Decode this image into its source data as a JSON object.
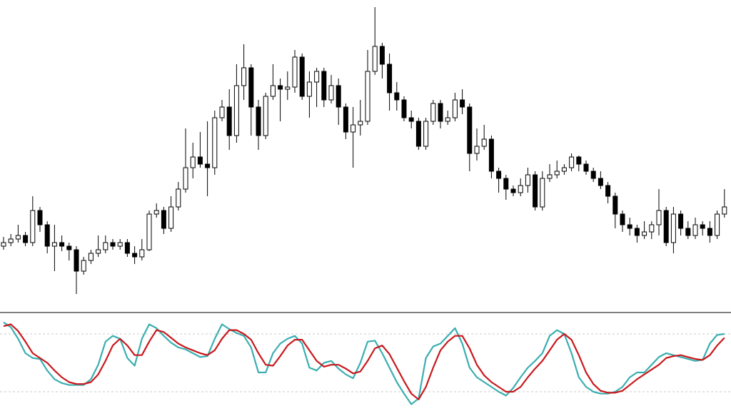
{
  "chart_data": [
    {
      "type": "candlestick",
      "ylim": [
        0,
        440
      ],
      "up_color": "#ffffff",
      "down_color": "#000000",
      "edge_color": "#000000",
      "open": [
        95,
        100,
        105,
        110,
        100,
        145,
        125,
        95,
        100,
        95,
        90,
        60,
        75,
        85,
        90,
        100,
        95,
        100,
        85,
        80,
        90,
        140,
        145,
        120,
        150,
        175,
        205,
        220,
        210,
        205,
        275,
        290,
        250,
        320,
        345,
        290,
        250,
        305,
        320,
        315,
        318,
        360,
        305,
        325,
        340,
        300,
        320,
        290,
        255,
        265,
        270,
        340,
        375,
        350,
        310,
        300,
        275,
        270,
        235,
        270,
        295,
        270,
        275,
        300,
        290,
        225,
        235,
        245,
        200,
        190,
        175,
        170,
        180,
        195,
        150,
        190,
        195,
        200,
        205,
        220,
        210,
        200,
        190,
        180,
        165,
        140,
        125,
        120,
        110,
        115,
        125,
        145,
        100,
        140,
        120,
        110,
        125,
        120,
        110,
        140
      ],
      "high": [
        108,
        112,
        125,
        115,
        165,
        150,
        130,
        125,
        110,
        100,
        95,
        80,
        90,
        110,
        110,
        105,
        105,
        105,
        95,
        105,
        145,
        155,
        150,
        165,
        185,
        260,
        240,
        255,
        270,
        285,
        300,
        315,
        350,
        378,
        350,
        300,
        310,
        350,
        330,
        340,
        370,
        365,
        340,
        345,
        345,
        335,
        330,
        295,
        290,
        300,
        370,
        430,
        380,
        365,
        325,
        305,
        285,
        275,
        275,
        300,
        300,
        285,
        310,
        315,
        295,
        260,
        265,
        250,
        205,
        195,
        180,
        190,
        205,
        200,
        200,
        210,
        215,
        210,
        225,
        222,
        215,
        205,
        200,
        185,
        170,
        145,
        135,
        125,
        130,
        130,
        175,
        150,
        150,
        145,
        130,
        135,
        130,
        130,
        145,
        175
      ],
      "low": [
        90,
        95,
        100,
        95,
        95,
        115,
        85,
        60,
        88,
        75,
        28,
        55,
        70,
        80,
        85,
        90,
        90,
        80,
        70,
        75,
        88,
        135,
        112,
        115,
        145,
        170,
        190,
        205,
        165,
        195,
        270,
        230,
        240,
        300,
        250,
        230,
        245,
        300,
        270,
        300,
        310,
        300,
        275,
        290,
        290,
        295,
        265,
        245,
        205,
        250,
        265,
        335,
        330,
        285,
        285,
        270,
        260,
        230,
        230,
        265,
        260,
        265,
        270,
        280,
        200,
        215,
        230,
        190,
        170,
        160,
        165,
        165,
        170,
        145,
        145,
        185,
        190,
        195,
        200,
        200,
        195,
        185,
        175,
        155,
        120,
        115,
        110,
        100,
        105,
        105,
        110,
        95,
        85,
        110,
        105,
        105,
        110,
        100,
        105,
        135
      ],
      "close": [
        100,
        105,
        110,
        100,
        145,
        125,
        95,
        100,
        95,
        90,
        60,
        75,
        85,
        90,
        100,
        95,
        100,
        85,
        80,
        90,
        140,
        145,
        120,
        150,
        175,
        205,
        220,
        210,
        205,
        275,
        290,
        250,
        320,
        345,
        290,
        250,
        305,
        320,
        315,
        318,
        360,
        305,
        325,
        340,
        300,
        320,
        290,
        255,
        265,
        270,
        340,
        375,
        350,
        310,
        300,
        275,
        270,
        235,
        270,
        295,
        270,
        275,
        300,
        290,
        225,
        235,
        245,
        200,
        190,
        175,
        170,
        180,
        195,
        150,
        190,
        195,
        200,
        205,
        220,
        210,
        200,
        190,
        180,
        165,
        140,
        125,
        120,
        110,
        115,
        125,
        145,
        100,
        140,
        120,
        110,
        125,
        120,
        110,
        140,
        150
      ]
    },
    {
      "type": "line",
      "ylim": [
        0,
        100
      ],
      "levels": [
        20,
        80
      ],
      "level_color": "#c8c8c8",
      "series": [
        {
          "color": "#3aaeb0",
          "values": [
            92,
            87,
            75,
            60,
            55,
            54,
            42,
            33,
            29,
            27,
            27,
            27,
            33,
            48,
            72,
            78,
            75,
            55,
            47,
            75,
            90,
            86,
            78,
            71,
            66,
            64,
            60,
            56,
            57,
            75,
            90,
            85,
            81,
            78,
            66,
            40,
            40,
            60,
            70,
            75,
            78,
            70,
            45,
            42,
            50,
            52,
            44,
            38,
            34,
            50,
            72,
            73,
            60,
            45,
            30,
            18,
            7,
            13,
            55,
            67,
            70,
            78,
            86,
            70,
            45,
            35,
            30,
            25,
            20,
            16,
            24,
            35,
            45,
            52,
            60,
            78,
            84,
            80,
            60,
            35,
            25,
            20,
            18,
            18,
            20,
            25,
            35,
            40,
            40,
            48,
            56,
            60,
            58,
            56,
            54,
            52,
            53,
            70,
            79,
            80
          ]
        },
        {
          "color": "#c8181c",
          "values": [
            88,
            90,
            83,
            72,
            60,
            55,
            50,
            42,
            35,
            30,
            28,
            28,
            30,
            38,
            52,
            68,
            75,
            68,
            58,
            58,
            72,
            84,
            82,
            76,
            70,
            66,
            63,
            60,
            58,
            63,
            75,
            84,
            84,
            80,
            74,
            60,
            48,
            47,
            57,
            68,
            74,
            74,
            63,
            52,
            46,
            48,
            48,
            44,
            39,
            41,
            52,
            65,
            68,
            59,
            45,
            31,
            18,
            12,
            25,
            45,
            63,
            72,
            78,
            78,
            65,
            48,
            37,
            30,
            25,
            20,
            20,
            25,
            35,
            44,
            52,
            63,
            74,
            80,
            74,
            58,
            40,
            28,
            21,
            19,
            19,
            21,
            27,
            33,
            38,
            43,
            48,
            55,
            57,
            58,
            56,
            54,
            53,
            58,
            68,
            76
          ]
        }
      ]
    }
  ]
}
